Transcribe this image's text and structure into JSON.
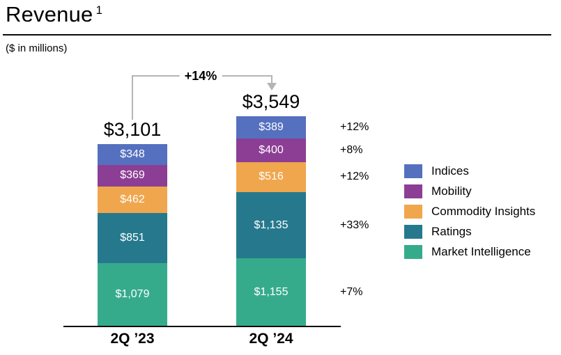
{
  "header": {
    "title": "Revenue",
    "footnote_marker": "1",
    "subtitle": "($ in millions)"
  },
  "chart_data": {
    "type": "bar",
    "stacked": true,
    "unit": "$ in millions",
    "categories": [
      "2Q ’23",
      "2Q ’24"
    ],
    "series": [
      {
        "name": "Indices",
        "color": "#5570BE",
        "values": [
          348,
          389
        ],
        "labels": [
          "$348",
          "$389"
        ],
        "growth": "+12%"
      },
      {
        "name": "Mobility",
        "color": "#8C3E94",
        "values": [
          369,
          400
        ],
        "labels": [
          "$369",
          "$400"
        ],
        "growth": "+8%"
      },
      {
        "name": "Commodity Insights",
        "color": "#F0A64D",
        "values": [
          462,
          516
        ],
        "labels": [
          "$462",
          "$516"
        ],
        "growth": "+12%"
      },
      {
        "name": "Ratings",
        "color": "#26798D",
        "values": [
          851,
          1135
        ],
        "labels": [
          "$851",
          "$1,135"
        ],
        "growth": "+33%"
      },
      {
        "name": "Market Intelligence",
        "color": "#36AB8C",
        "values": [
          1079,
          1155
        ],
        "labels": [
          "$1,079",
          "$1,155"
        ],
        "growth": "+7%"
      }
    ],
    "totals": {
      "values": [
        3101,
        3549
      ],
      "labels": [
        "$3,101",
        "$3,549"
      ]
    },
    "total_growth": "+14%",
    "legend_position": "right",
    "grid": false
  },
  "legend": {
    "items": [
      {
        "label": "Indices",
        "color": "#5570BE"
      },
      {
        "label": "Mobility",
        "color": "#8C3E94"
      },
      {
        "label": "Commodity Insights",
        "color": "#F0A64D"
      },
      {
        "label": "Ratings",
        "color": "#26798D"
      },
      {
        "label": "Market Intelligence",
        "color": "#36AB8C"
      }
    ]
  }
}
